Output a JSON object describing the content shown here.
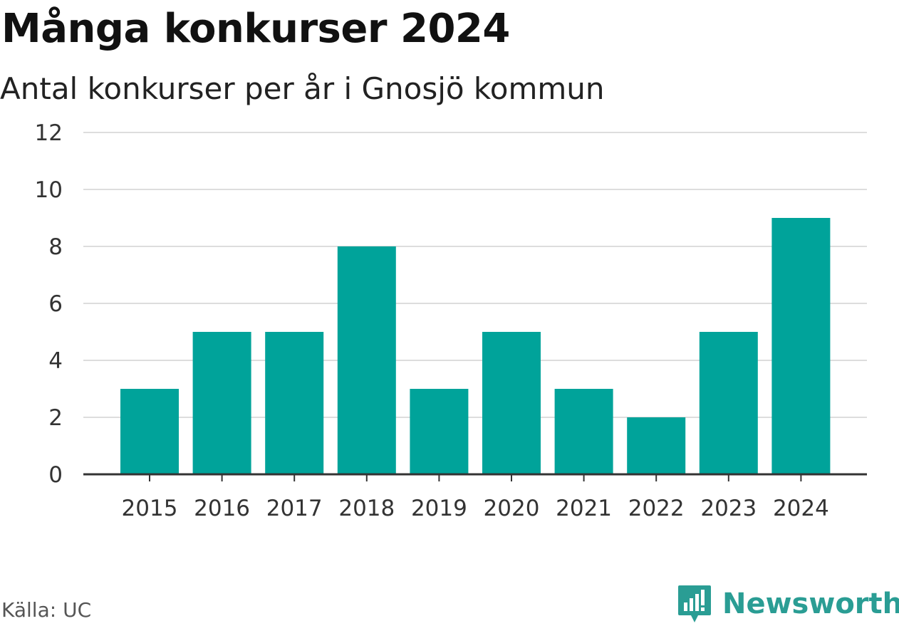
{
  "header": {
    "title": "Många konkurser 2024",
    "subtitle": "Antal konkurser per år i Gnosjö kommun"
  },
  "footer": {
    "source": "Källa: UC",
    "brand": "Newsworthy"
  },
  "colors": {
    "bar": "#00a39a",
    "grid": "#dddddd",
    "axis": "#333333",
    "brand": "#2a9d94"
  },
  "chart_data": {
    "type": "bar",
    "categories": [
      "2015",
      "2016",
      "2017",
      "2018",
      "2019",
      "2020",
      "2021",
      "2022",
      "2023",
      "2024"
    ],
    "values": [
      3,
      5,
      5,
      8,
      3,
      5,
      3,
      2,
      5,
      9
    ],
    "yticks": [
      "0",
      "2",
      "4",
      "6",
      "8",
      "10",
      "12"
    ],
    "ylim": [
      0,
      12
    ],
    "grid": true,
    "xlabel": "",
    "ylabel": ""
  }
}
